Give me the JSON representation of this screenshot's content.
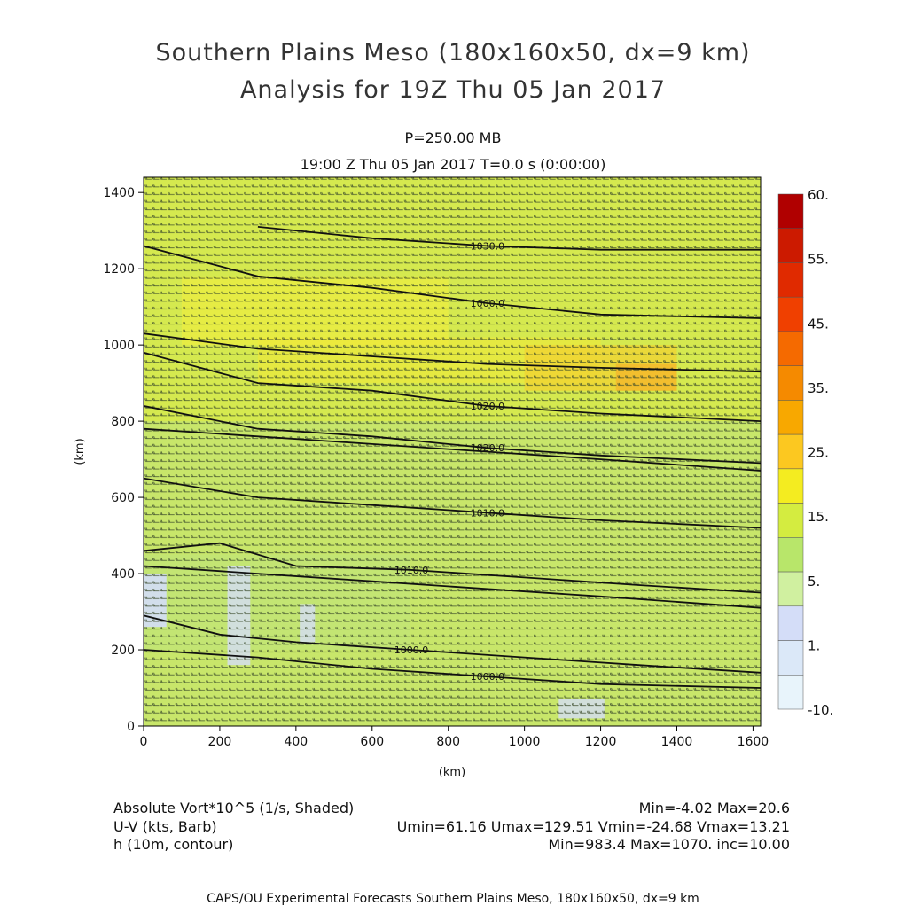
{
  "chart_data": {
    "type": "heatmap",
    "title": "Southern Plains Meso (180x160x50, dx=9 km)",
    "subtitle": "Analysis for 19Z Thu 05 Jan 2017",
    "level": "P=250.00 MB",
    "time_line": "19:00 Z Thu 05 Jan 2017    T=0.0 s (0:00:00)",
    "xlabel": "(km)",
    "ylabel": "(km)",
    "xlim": [
      0,
      1620
    ],
    "ylim": [
      0,
      1440
    ],
    "x_ticks": [
      0,
      200,
      400,
      600,
      800,
      1000,
      1200,
      1400,
      1600
    ],
    "y_ticks": [
      0,
      200,
      400,
      600,
      800,
      1000,
      1200,
      1400
    ],
    "x_tick_labels": [
      "0",
      "200",
      "400",
      "600",
      "800",
      "1000",
      "1200",
      "1400",
      "1600"
    ],
    "y_tick_labels": [
      "0",
      "200",
      "400",
      "600",
      "800",
      "1000",
      "1200",
      "1400"
    ],
    "colorbar": {
      "labels": [
        "60.",
        "55.",
        "45.",
        "35.",
        "25.",
        "15.",
        "5.",
        "1.",
        "-10."
      ],
      "colors": [
        "#b00000",
        "#cc1a00",
        "#e02a00",
        "#f04000",
        "#f56a00",
        "#f58a00",
        "#f8a800",
        "#fcc820",
        "#f4ec20",
        "#d4ec40",
        "#b8e66a",
        "#d0f0a0",
        "#d4ddf8",
        "#dbe8f8",
        "#e8f4fb"
      ]
    },
    "contours": [
      {
        "label": "1030.0",
        "points": [
          [
            300,
            1310
          ],
          [
            600,
            1280
          ],
          [
            900,
            1260
          ],
          [
            1200,
            1250
          ],
          [
            1620,
            1250
          ]
        ]
      },
      {
        "label": "1000.0",
        "points": [
          [
            0,
            1260
          ],
          [
            300,
            1180
          ],
          [
            600,
            1150
          ],
          [
            900,
            1110
          ],
          [
            1200,
            1080
          ],
          [
            1620,
            1070
          ]
        ]
      },
      {
        "label": "",
        "points": [
          [
            0,
            1030
          ],
          [
            300,
            990
          ],
          [
            600,
            970
          ],
          [
            900,
            950
          ],
          [
            1200,
            940
          ],
          [
            1620,
            930
          ]
        ]
      },
      {
        "label": "1020.0",
        "points": [
          [
            0,
            980
          ],
          [
            300,
            900
          ],
          [
            600,
            880
          ],
          [
            900,
            840
          ],
          [
            1200,
            820
          ],
          [
            1620,
            800
          ]
        ]
      },
      {
        "label": "1020.0",
        "points": [
          [
            0,
            840
          ],
          [
            300,
            780
          ],
          [
            600,
            760
          ],
          [
            900,
            730
          ],
          [
            1200,
            710
          ],
          [
            1620,
            690
          ]
        ]
      },
      {
        "label": "",
        "points": [
          [
            0,
            780
          ],
          [
            300,
            760
          ],
          [
            600,
            740
          ],
          [
            900,
            720
          ],
          [
            1200,
            700
          ],
          [
            1620,
            670
          ]
        ]
      },
      {
        "label": "1010.0",
        "points": [
          [
            0,
            650
          ],
          [
            300,
            600
          ],
          [
            600,
            580
          ],
          [
            900,
            560
          ],
          [
            1200,
            540
          ],
          [
            1620,
            520
          ]
        ]
      },
      {
        "label": "1010.0",
        "points": [
          [
            0,
            460
          ],
          [
            200,
            480
          ],
          [
            400,
            420
          ],
          [
            700,
            410
          ],
          [
            1000,
            390
          ],
          [
            1300,
            370
          ],
          [
            1620,
            350
          ]
        ]
      },
      {
        "label": "",
        "points": [
          [
            0,
            420
          ],
          [
            300,
            400
          ],
          [
            600,
            380
          ],
          [
            900,
            360
          ],
          [
            1200,
            340
          ],
          [
            1620,
            310
          ]
        ]
      },
      {
        "label": "1000.0",
        "points": [
          [
            0,
            290
          ],
          [
            200,
            240
          ],
          [
            400,
            220
          ],
          [
            700,
            200
          ],
          [
            1000,
            180
          ],
          [
            1300,
            160
          ],
          [
            1620,
            140
          ]
        ]
      },
      {
        "label": "1000.0",
        "points": [
          [
            0,
            200
          ],
          [
            300,
            180
          ],
          [
            600,
            150
          ],
          [
            900,
            130
          ],
          [
            1200,
            110
          ],
          [
            1620,
            100
          ]
        ]
      }
    ],
    "annotations": [
      {
        "text": "1030.0"
      },
      {
        "text": "1000.0"
      },
      {
        "text": "1020.0"
      },
      {
        "text": "1020.0"
      },
      {
        "text": "1010.0"
      },
      {
        "text": "1010.0"
      },
      {
        "text": "1000.0"
      },
      {
        "text": "1000.0"
      }
    ]
  },
  "bottom": {
    "field1_name": "Absolute Vort*10^5 (1/s, Shaded)",
    "field1_stats": "Min=-4.02  Max=20.6",
    "field2_name": "U-V (kts, Barb)",
    "field2_stats": "Umin=61.16  Umax=129.51  Vmin=-24.68  Vmax=13.21",
    "field3_name": "h (10m, contour)",
    "field3_stats": "Min=983.4  Max=1070.  inc=10.00"
  },
  "footer": "CAPS/OU Experimental Forecasts   Southern Plains Meso, 180x160x50, dx=9 km"
}
